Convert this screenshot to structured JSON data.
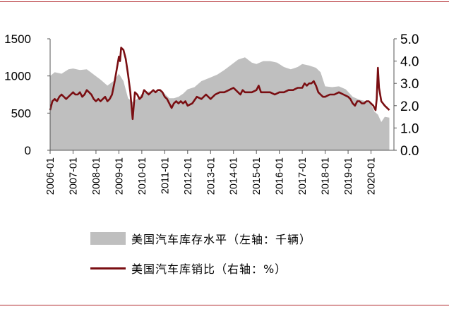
{
  "chart_data": {
    "type": "area+line",
    "title": "",
    "x_labels": [
      "2006-01",
      "2007-01",
      "2008-01",
      "2009-01",
      "2010-01",
      "2011-01",
      "2012-01",
      "2013-01",
      "2014-01",
      "2015-01",
      "2016-01",
      "2017-01",
      "2018-01",
      "2019-01",
      "2020-01"
    ],
    "left_axis": {
      "ylim": [
        0,
        1500
      ],
      "ticks": [
        0,
        500,
        1000,
        1500
      ]
    },
    "right_axis": {
      "ylim": [
        0,
        5.0
      ],
      "ticks": [
        "0.0",
        "1.0",
        "2.0",
        "3.0",
        "4.0",
        "5.0"
      ]
    },
    "grid": false,
    "legend_position": "bottom",
    "series": [
      {
        "name": "美国汽车库存水平（左轴：千辆）",
        "type": "area",
        "axis": "left",
        "color": "#bfbfbf",
        "x": [
          2006.0,
          2006.2,
          2006.5,
          2006.8,
          2007.0,
          2007.3,
          2007.6,
          2007.9,
          2008.2,
          2008.5,
          2008.8,
          2009.0,
          2009.2,
          2009.4,
          2009.6,
          2009.8,
          2010.0,
          2010.3,
          2010.6,
          2010.9,
          2011.0,
          2011.2,
          2011.4,
          2011.6,
          2011.8,
          2012.0,
          2012.3,
          2012.6,
          2013.0,
          2013.3,
          2013.6,
          2013.9,
          2014.2,
          2014.5,
          2014.8,
          2015.0,
          2015.3,
          2015.6,
          2015.9,
          2016.2,
          2016.5,
          2016.8,
          2017.0,
          2017.3,
          2017.6,
          2017.8,
          2018.0,
          2018.3,
          2018.6,
          2018.9,
          2019.2,
          2019.5,
          2019.8,
          2020.0,
          2020.15,
          2020.3,
          2020.45,
          2020.6,
          2020.8
        ],
        "values": [
          1000,
          1050,
          1030,
          1090,
          1100,
          1080,
          1090,
          1020,
          950,
          870,
          940,
          1030,
          930,
          700,
          650,
          690,
          760,
          790,
          790,
          800,
          760,
          700,
          700,
          720,
          760,
          820,
          850,
          930,
          980,
          1020,
          1080,
          1150,
          1220,
          1250,
          1180,
          1160,
          1200,
          1200,
          1180,
          1120,
          1090,
          1120,
          1160,
          1140,
          1110,
          1050,
          860,
          850,
          860,
          820,
          720,
          680,
          660,
          620,
          520,
          480,
          380,
          450,
          440
        ]
      },
      {
        "name": "美国汽车库销比（右轴：%）",
        "type": "line",
        "axis": "right",
        "color": "#7a0e12",
        "x": [
          2006.0,
          2006.1,
          2006.2,
          2006.3,
          2006.4,
          2006.5,
          2006.7,
          2006.9,
          2007.0,
          2007.1,
          2007.2,
          2007.3,
          2007.4,
          2007.5,
          2007.6,
          2007.7,
          2007.8,
          2007.9,
          2008.0,
          2008.1,
          2008.2,
          2008.3,
          2008.4,
          2008.5,
          2008.6,
          2008.7,
          2008.8,
          2008.9,
          2009.0,
          2009.05,
          2009.1,
          2009.2,
          2009.3,
          2009.4,
          2009.5,
          2009.6,
          2009.7,
          2009.8,
          2009.9,
          2010.0,
          2010.1,
          2010.2,
          2010.3,
          2010.4,
          2010.5,
          2010.6,
          2010.7,
          2010.8,
          2010.9,
          2011.0,
          2011.1,
          2011.2,
          2011.3,
          2011.4,
          2011.5,
          2011.6,
          2011.7,
          2011.8,
          2011.9,
          2012.0,
          2012.2,
          2012.4,
          2012.6,
          2012.8,
          2013.0,
          2013.2,
          2013.4,
          2013.6,
          2013.8,
          2014.0,
          2014.1,
          2014.2,
          2014.3,
          2014.4,
          2014.5,
          2014.6,
          2014.8,
          2015.0,
          2015.1,
          2015.2,
          2015.4,
          2015.6,
          2015.8,
          2016.0,
          2016.2,
          2016.4,
          2016.6,
          2016.8,
          2017.0,
          2017.1,
          2017.2,
          2017.3,
          2017.4,
          2017.5,
          2017.6,
          2017.7,
          2017.8,
          2017.9,
          2018.0,
          2018.2,
          2018.4,
          2018.6,
          2018.8,
          2019.0,
          2019.1,
          2019.2,
          2019.3,
          2019.4,
          2019.5,
          2019.6,
          2019.7,
          2019.8,
          2019.9,
          2020.0,
          2020.1,
          2020.2,
          2020.25,
          2020.3,
          2020.35,
          2020.45,
          2020.6,
          2020.8
        ],
        "values": [
          1.8,
          2.2,
          2.3,
          2.2,
          2.4,
          2.5,
          2.3,
          2.5,
          2.6,
          2.5,
          2.5,
          2.6,
          2.4,
          2.5,
          2.7,
          2.6,
          2.5,
          2.3,
          2.2,
          2.3,
          2.2,
          2.3,
          2.4,
          2.2,
          2.3,
          2.5,
          3.0,
          3.6,
          4.2,
          4.0,
          4.6,
          4.5,
          4.1,
          3.4,
          2.6,
          1.4,
          2.6,
          2.5,
          2.3,
          2.4,
          2.7,
          2.6,
          2.5,
          2.6,
          2.7,
          2.6,
          2.7,
          2.7,
          2.6,
          2.4,
          2.3,
          2.1,
          1.9,
          2.1,
          2.2,
          2.1,
          2.2,
          2.1,
          2.2,
          2.0,
          2.1,
          2.4,
          2.3,
          2.5,
          2.3,
          2.5,
          2.6,
          2.6,
          2.7,
          2.8,
          2.7,
          2.6,
          2.5,
          2.7,
          2.6,
          2.6,
          2.6,
          2.7,
          2.9,
          2.6,
          2.6,
          2.6,
          2.5,
          2.6,
          2.6,
          2.7,
          2.7,
          2.8,
          2.8,
          3.0,
          2.9,
          3.0,
          3.0,
          3.1,
          2.9,
          2.6,
          2.5,
          2.4,
          2.4,
          2.5,
          2.5,
          2.6,
          2.5,
          2.4,
          2.3,
          2.1,
          2.0,
          2.2,
          2.2,
          2.1,
          2.1,
          2.2,
          2.2,
          2.1,
          2.0,
          1.8,
          2.3,
          3.7,
          2.8,
          2.2,
          2.0,
          1.8
        ]
      }
    ]
  }
}
